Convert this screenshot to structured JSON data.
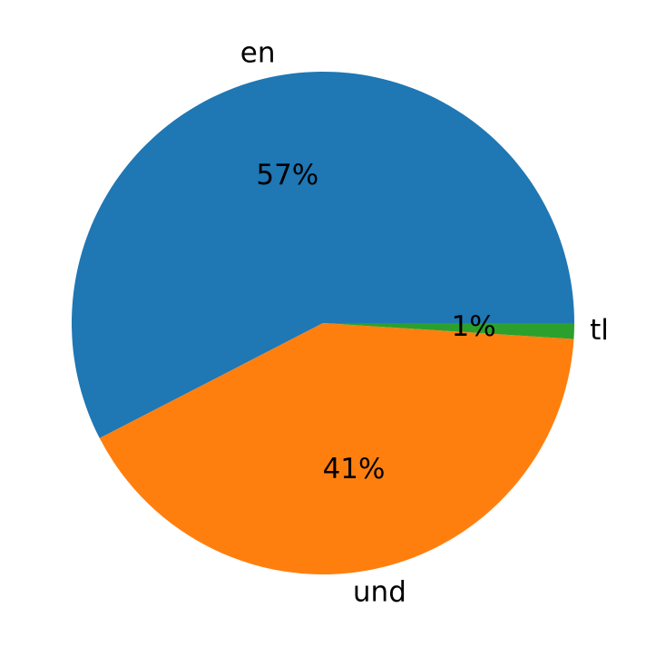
{
  "chart_data": {
    "type": "pie",
    "categories": [
      "en",
      "und",
      "tl"
    ],
    "values": [
      57,
      41,
      1
    ],
    "value_labels": [
      "57%",
      "41%",
      "1%"
    ],
    "colors": [
      "#1f77b4",
      "#ff7f0e",
      "#2ca02c"
    ]
  }
}
